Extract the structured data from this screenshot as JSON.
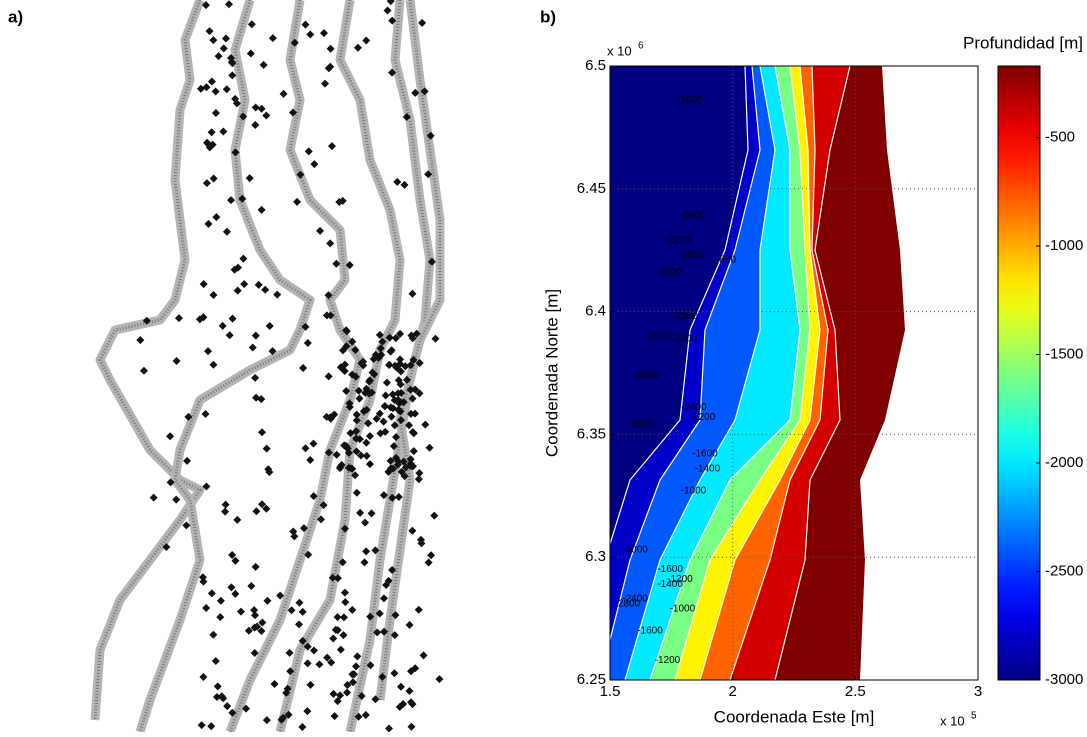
{
  "panel_labels": [
    "a)",
    "b)"
  ],
  "chart_data": {
    "type": "contour",
    "xlabel": "Coordenada Este [m]",
    "ylabel": "Coordenada Norte [m]",
    "x_multiplier": {
      "base": "x 10",
      "exponent": "5"
    },
    "y_multiplier": {
      "base": "x 10",
      "exponent": "6"
    },
    "xlim": [
      1.5,
      3
    ],
    "xticks": [
      1.5,
      2,
      2.5,
      3
    ],
    "ylim": [
      6.25,
      6.5
    ],
    "yticks": [
      6.25,
      6.3,
      6.35,
      6.4,
      6.45,
      6.5
    ],
    "grid": true,
    "colorbar": {
      "title": "Profundidad [m]",
      "clim": [
        -3000,
        -170
      ],
      "ticks": [
        -500,
        -1000,
        -1500,
        -2000,
        -2500,
        -3000
      ],
      "colormap": "jet"
    },
    "contour_labels": [
      {
        "x": 1.826,
        "y": 6.486,
        "value": -2600
      },
      {
        "x": 1.836,
        "y": 6.439,
        "value": -2600
      },
      {
        "x": 1.775,
        "y": 6.429,
        "value": -2200
      },
      {
        "x": 1.739,
        "y": 6.416,
        "value": -3000
      },
      {
        "x": 1.83,
        "y": 6.423,
        "value": -1800
      },
      {
        "x": 1.973,
        "y": 6.421,
        "value": -800
      },
      {
        "x": 1.806,
        "y": 6.398,
        "value": -2200
      },
      {
        "x": 1.802,
        "y": 6.389,
        "value": -2400
      },
      {
        "x": 1.694,
        "y": 6.39,
        "value": -2600
      },
      {
        "x": 1.649,
        "y": 6.374,
        "value": -2800
      },
      {
        "x": 1.626,
        "y": 6.354,
        "value": -3000
      },
      {
        "x": 1.842,
        "y": 6.361,
        "value": -2400
      },
      {
        "x": 1.877,
        "y": 6.357,
        "value": -2200
      },
      {
        "x": 1.887,
        "y": 6.342,
        "value": -1600
      },
      {
        "x": 1.897,
        "y": 6.336,
        "value": -1400
      },
      {
        "x": 1.84,
        "y": 6.327,
        "value": -1000
      },
      {
        "x": 1.602,
        "y": 6.303,
        "value": -3000
      },
      {
        "x": 1.745,
        "y": 6.295,
        "value": -1600
      },
      {
        "x": 1.745,
        "y": 6.289,
        "value": -1400
      },
      {
        "x": 1.785,
        "y": 6.291,
        "value": -1200
      },
      {
        "x": 1.795,
        "y": 6.279,
        "value": -1000
      },
      {
        "x": 1.571,
        "y": 6.281,
        "value": -2800
      },
      {
        "x": 1.602,
        "y": 6.283,
        "value": -2400
      },
      {
        "x": 1.663,
        "y": 6.27,
        "value": -1600
      },
      {
        "x": 1.734,
        "y": 6.258,
        "value": -1200
      }
    ]
  }
}
